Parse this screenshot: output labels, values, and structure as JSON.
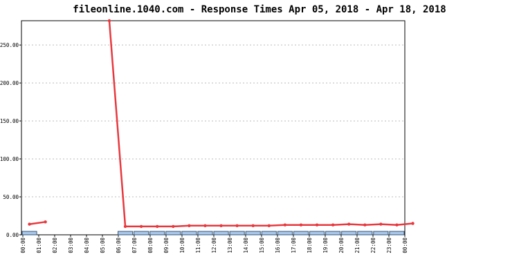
{
  "chart_data": {
    "type": "line",
    "title": "fileonline.1040.com - Response Times Apr 05, 2018 - Apr 18, 2018",
    "xticks": [
      "00:00",
      "01:00",
      "02:00",
      "03:00",
      "04:00",
      "05:00",
      "06:00",
      "07:00",
      "08:00",
      "09:00",
      "10:00",
      "11:00",
      "12:00",
      "13:00",
      "14:00",
      "15:00",
      "16:00",
      "17:00",
      "18:00",
      "19:00",
      "20:00",
      "21:00",
      "22:00",
      "23:00",
      "00:00"
    ],
    "ylim": [
      0,
      282
    ],
    "yticks": [
      {
        "value": 0,
        "label": "0.00"
      },
      {
        "value": 50,
        "label": "50.00"
      },
      {
        "value": 100,
        "label": "100.00"
      },
      {
        "value": 150,
        "label": "150.00"
      },
      {
        "value": 200,
        "label": "200.00"
      },
      {
        "value": 250,
        "label": "250.00"
      }
    ],
    "grid": true,
    "series": [
      {
        "type": "line",
        "color": "#e8383d",
        "values": [
          14,
          17,
          null,
          null,
          null,
          282,
          11,
          11,
          11,
          11,
          12,
          12,
          12,
          12,
          12,
          12,
          13,
          13,
          13,
          13,
          14,
          13,
          14,
          13,
          15
        ]
      },
      {
        "type": "bar",
        "color": "#a9c8ec",
        "values": [
          4.5,
          null,
          null,
          null,
          null,
          null,
          4.5,
          4.5,
          4.5,
          4.5,
          4.5,
          4.5,
          4.5,
          4.5,
          4.5,
          4.5,
          4.5,
          4.5,
          4.5,
          4.5,
          4.5,
          4.5,
          4.5,
          4.5
        ]
      }
    ]
  }
}
